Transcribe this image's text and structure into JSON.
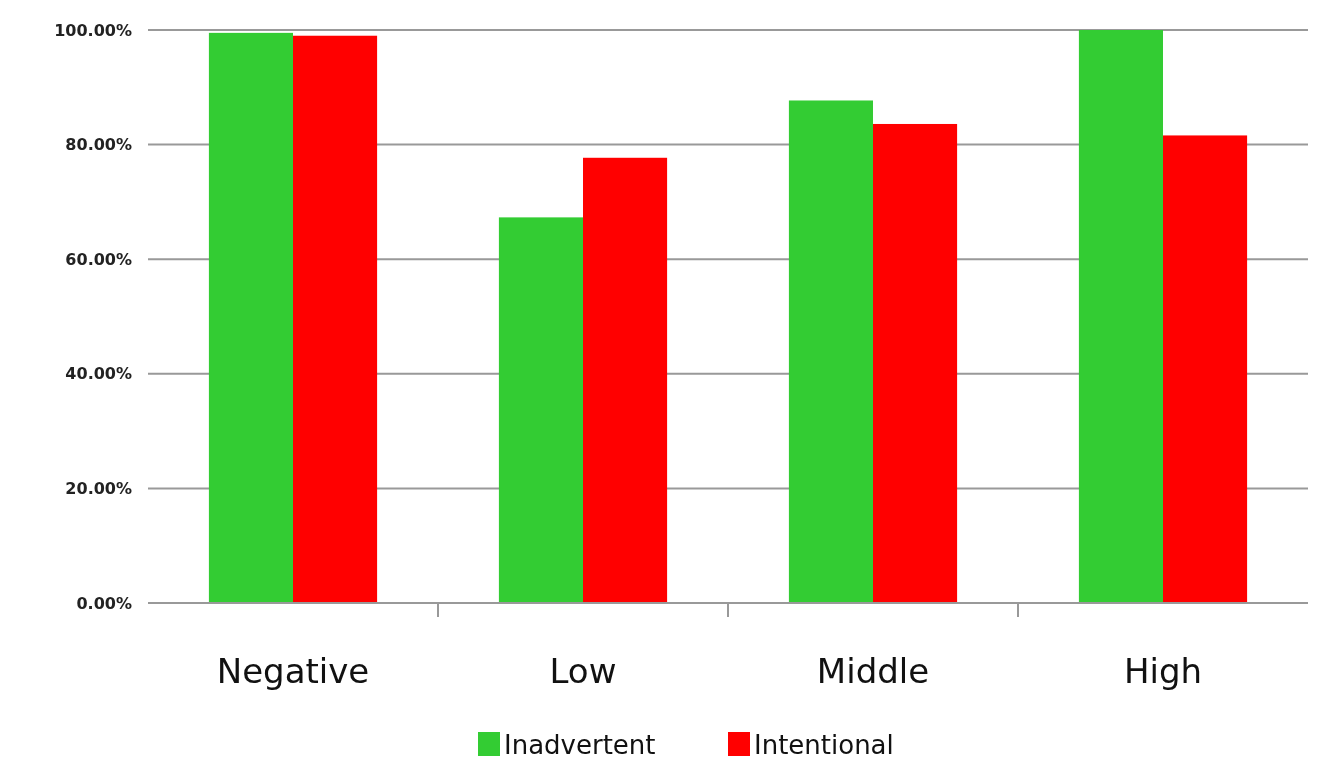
{
  "chart_data": {
    "type": "bar",
    "categories": [
      "Negative",
      "Low",
      "Middle",
      "High"
    ],
    "series": [
      {
        "name": "Inadvertent",
        "color": "#33cc33",
        "values": [
          99.5,
          67.3,
          87.7,
          100
        ]
      },
      {
        "name": "Intentional",
        "color": "#ff0000",
        "values": [
          99.0,
          77.7,
          83.6,
          81.6
        ]
      }
    ],
    "ylim": [
      0,
      100
    ],
    "yticks": [
      {
        "value": 0,
        "label": "0.00%"
      },
      {
        "value": 20,
        "label": "20.00%"
      },
      {
        "value": 40,
        "label": "40.00%"
      },
      {
        "value": 60,
        "label": "60.00%"
      },
      {
        "value": 80,
        "label": "80.00%"
      },
      {
        "value": 100,
        "label": "100.00%"
      }
    ],
    "grid": "y",
    "legend": "bottom"
  }
}
